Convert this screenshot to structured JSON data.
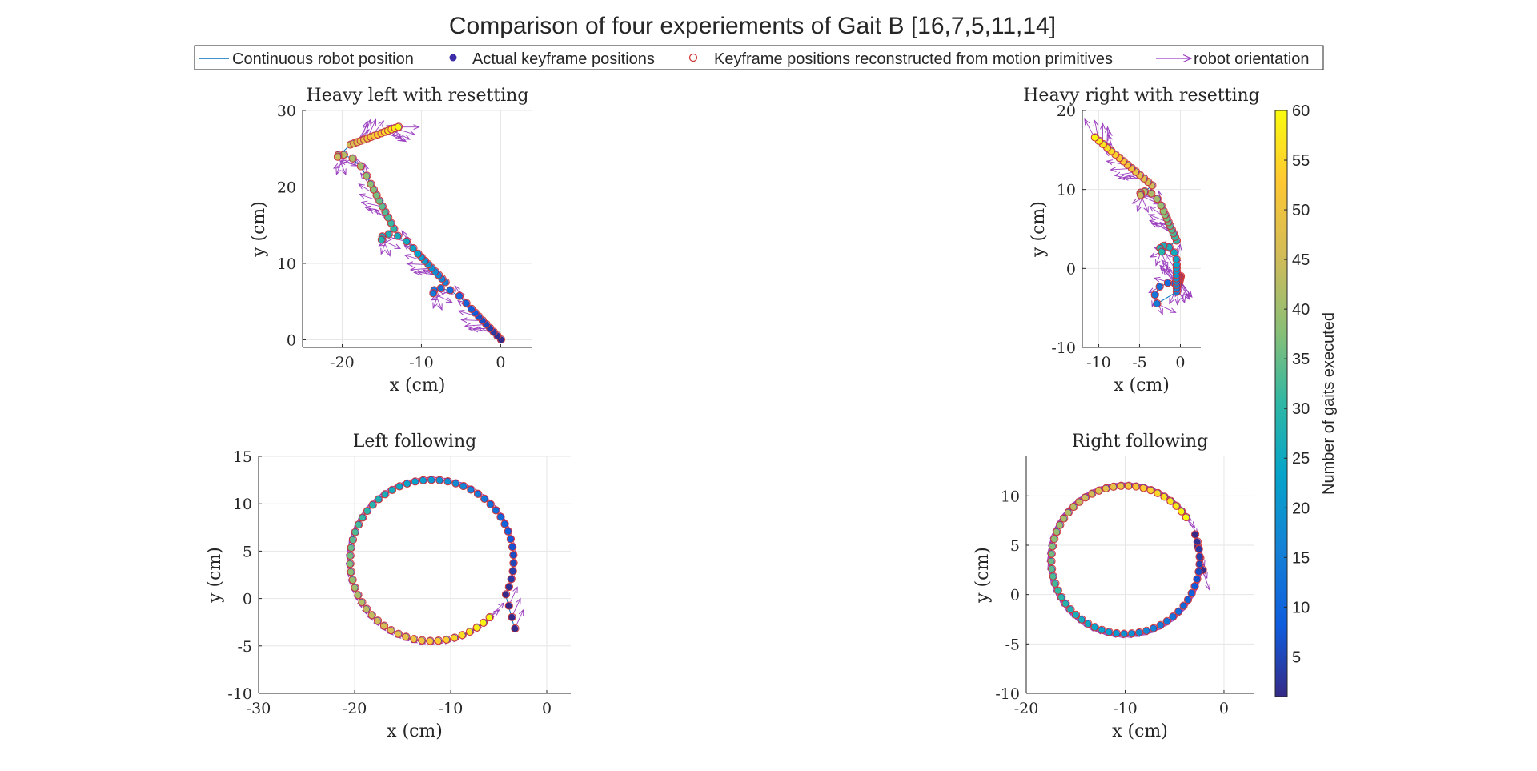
{
  "chart_data": {
    "type": "scatter",
    "title": "Comparison of four experiements of Gait B [16,7,5,11,14]",
    "legend": {
      "placement": "top",
      "entries": [
        {
          "label": "Continuous robot position",
          "marker": "line",
          "color": "#0072BD"
        },
        {
          "label": "Actual keyframe positions",
          "marker": "filled-dot",
          "color": "#3D2CA8"
        },
        {
          "label": "Keyframe positions reconstructed from motion primitives",
          "marker": "open-circle",
          "color": "#D23B3B"
        },
        {
          "label": "robot orientation",
          "marker": "arrow",
          "color": "#9B3FBF"
        }
      ]
    },
    "colorbar": {
      "label": "Number of gaits executed",
      "min": 1,
      "max": 60,
      "ticks": [
        5,
        10,
        15,
        20,
        25,
        30,
        35,
        40,
        45,
        50,
        55,
        60
      ],
      "colormap": "parula"
    },
    "panels": [
      {
        "id": "heavy-left",
        "title": "Heavy left with resetting",
        "xlabel": "x (cm)",
        "ylabel": "y (cm)",
        "xlim": [
          -25,
          4
        ],
        "ylim": [
          -1,
          30
        ],
        "xticks": [
          -20,
          -10,
          0
        ],
        "yticks": [
          0,
          10,
          20,
          30
        ],
        "grid": true,
        "path": {
          "type": "spirals",
          "start": [
            0,
            0
          ],
          "end": [
            -12.5,
            28
          ],
          "loops": [
            {
              "center": [
                -10,
                7.5
              ],
              "radius": 3
            },
            {
              "center": [
                -16.5,
                14.5
              ],
              "radius": 3
            },
            {
              "center": [
                -22,
                25.5
              ],
              "radius": 3
            }
          ]
        },
        "n": 60
      },
      {
        "id": "heavy-right",
        "title": "Heavy right with resetting",
        "xlabel": "x (cm)",
        "ylabel": "y (cm)",
        "xlim": [
          -12,
          2.5
        ],
        "ylim": [
          -10,
          20
        ],
        "xticks": [
          -10,
          -5,
          0
        ],
        "yticks": [
          -10,
          0,
          10,
          20
        ],
        "grid": true,
        "path": {
          "type": "spirals",
          "start": [
            0,
            -1
          ],
          "end": [
            -11,
            17
          ],
          "loops": [
            {
              "center": [
                -4.5,
                -3
              ],
              "radius": 4
            },
            {
              "center": [
                -3.5,
                3.5
              ],
              "radius": 3
            },
            {
              "center": [
                -6,
                10.5
              ],
              "radius": 2.5
            }
          ]
        },
        "n": 60
      },
      {
        "id": "left-following",
        "title": "Left following",
        "xlabel": "x (cm)",
        "ylabel": "y (cm)",
        "xlim": [
          -30,
          2.5
        ],
        "ylim": [
          -10,
          15
        ],
        "xticks": [
          -30,
          -20,
          -10,
          0
        ],
        "yticks": [
          -10,
          -5,
          0,
          5,
          10,
          15
        ],
        "grid": true,
        "path": {
          "type": "circle",
          "center": [
            -12,
            4
          ],
          "radius": 8.5,
          "start_angle_deg": -25,
          "sweep_deg": 340,
          "direction": "ccw"
        },
        "n": 60
      },
      {
        "id": "right-following",
        "title": "Right following",
        "xlabel": "x (cm)",
        "ylabel": "y (cm)",
        "xlim": [
          -20,
          3
        ],
        "ylim": [
          -10,
          14
        ],
        "xticks": [
          -20,
          -10,
          0
        ],
        "yticks": [
          -10,
          -5,
          0,
          5,
          10
        ],
        "grid": true,
        "path": {
          "type": "circle",
          "center": [
            -10,
            3.5
          ],
          "radius": 7.5,
          "start_angle_deg": 20,
          "sweep_deg": 345,
          "direction": "cw"
        },
        "n": 60
      }
    ]
  }
}
